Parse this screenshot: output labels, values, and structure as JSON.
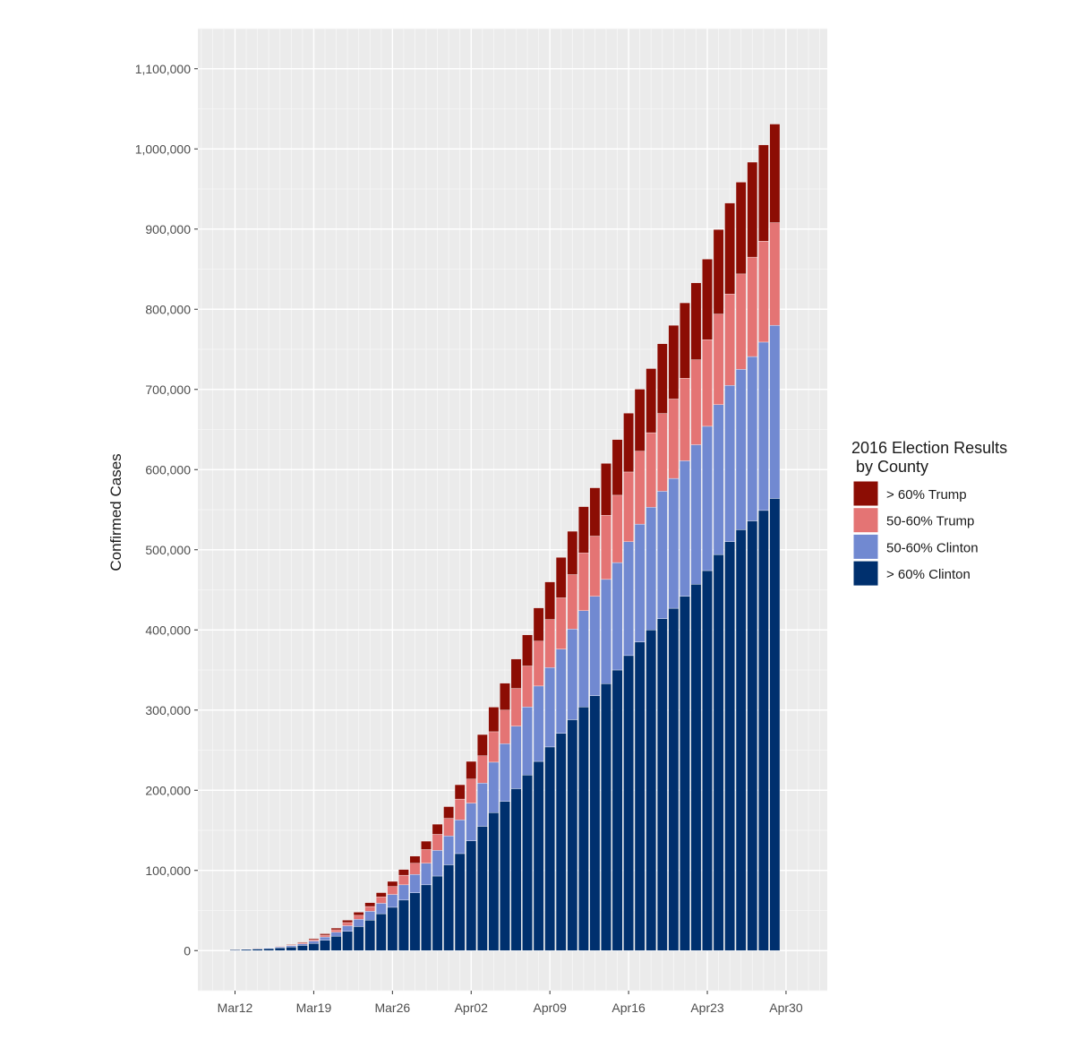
{
  "chart_data": {
    "type": "bar",
    "stacked": true,
    "title": "",
    "xlabel": "",
    "ylabel": "Confirmed Cases",
    "ylim": [
      -50000,
      1150000
    ],
    "y_ticks": [
      0,
      100000,
      200000,
      300000,
      400000,
      500000,
      600000,
      700000,
      800000,
      900000,
      1000000,
      1100000
    ],
    "y_tick_labels": [
      "0",
      "100,000",
      "200,000",
      "300,000",
      "400,000",
      "500,000",
      "600,000",
      "700,000",
      "800,000",
      "900,000",
      "1,000,000",
      "1,100,000"
    ],
    "x_tick_labels": [
      "Mar12",
      "Mar19",
      "Mar26",
      "Apr02",
      "Apr09",
      "Apr16",
      "Apr23",
      "Apr30"
    ],
    "x_dates": [
      "Mar12",
      "Mar13",
      "Mar14",
      "Mar15",
      "Mar16",
      "Mar17",
      "Mar18",
      "Mar19",
      "Mar20",
      "Mar21",
      "Mar22",
      "Mar23",
      "Mar24",
      "Mar25",
      "Mar26",
      "Mar27",
      "Mar28",
      "Mar29",
      "Mar30",
      "Mar31",
      "Apr01",
      "Apr02",
      "Apr03",
      "Apr04",
      "Apr05",
      "Apr06",
      "Apr07",
      "Apr08",
      "Apr09",
      "Apr10",
      "Apr11",
      "Apr12",
      "Apr13",
      "Apr14",
      "Apr15",
      "Apr16",
      "Apr17",
      "Apr18",
      "Apr19",
      "Apr20",
      "Apr21",
      "Apr22",
      "Apr23",
      "Apr24",
      "Apr25",
      "Apr26",
      "Apr27",
      "Apr28",
      "Apr29"
    ],
    "grid": true,
    "legend_title": "2016 Election Results\n by County",
    "legend_placement": "right",
    "series": [
      {
        "name": "> 60% Clinton",
        "color": "#00306e",
        "values": [
          1000,
          1500,
          2000,
          2500,
          3500,
          4500,
          6500,
          9000,
          13000,
          18000,
          24000,
          30000,
          38000,
          46000,
          54000,
          63000,
          72000,
          82000,
          93000,
          107000,
          121000,
          137000,
          155000,
          172000,
          186000,
          202000,
          219000,
          236000,
          254000,
          271000,
          288000,
          304000,
          318000,
          333000,
          350000,
          368000,
          385000,
          400000,
          414000,
          427000,
          442000,
          457000,
          474000,
          494000,
          510000,
          525000,
          536000,
          549000,
          564000
        ]
      },
      {
        "name": "50-60% Clinton",
        "color": "#7189d1",
        "values": [
          200,
          300,
          500,
          700,
          1000,
          1500,
          2000,
          3000,
          4000,
          5000,
          7000,
          9000,
          11000,
          13000,
          16000,
          19000,
          23000,
          27000,
          32000,
          36000,
          42000,
          47000,
          54000,
          63000,
          72000,
          78000,
          85000,
          94000,
          99000,
          105000,
          113000,
          120000,
          124000,
          130000,
          134000,
          142000,
          147000,
          153000,
          159000,
          162000,
          169000,
          174000,
          180000,
          187000,
          195000,
          200000,
          205000,
          210000,
          216000
        ]
      },
      {
        "name": "50-60% Trump",
        "color": "#e47474",
        "values": [
          100,
          200,
          300,
          400,
          600,
          800,
          1200,
          1700,
          2300,
          3000,
          4000,
          5000,
          6000,
          8000,
          10000,
          12000,
          14000,
          17000,
          20000,
          22000,
          26000,
          30000,
          34000,
          38000,
          42000,
          47000,
          51000,
          56000,
          60000,
          64000,
          68000,
          72000,
          75000,
          80000,
          84000,
          87000,
          91000,
          93000,
          97000,
          99000,
          103000,
          106000,
          108000,
          113000,
          114000,
          119000,
          124000,
          126000,
          128000
        ]
      },
      {
        "name": "> 60% Trump",
        "color": "#8c0d04",
        "values": [
          100,
          200,
          300,
          400,
          500,
          700,
          900,
          1200,
          1700,
          2100,
          2900,
          3900,
          4800,
          5300,
          6300,
          7200,
          8800,
          10500,
          12700,
          14600,
          17900,
          22000,
          26500,
          30700,
          33600,
          36700,
          38800,
          41500,
          46900,
          50500,
          54100,
          57800,
          60300,
          64700,
          69500,
          73400,
          77300,
          80000,
          87000,
          92000,
          94000,
          96000,
          100500,
          105500,
          113500,
          114500,
          118500,
          120000,
          123000
        ]
      }
    ]
  }
}
